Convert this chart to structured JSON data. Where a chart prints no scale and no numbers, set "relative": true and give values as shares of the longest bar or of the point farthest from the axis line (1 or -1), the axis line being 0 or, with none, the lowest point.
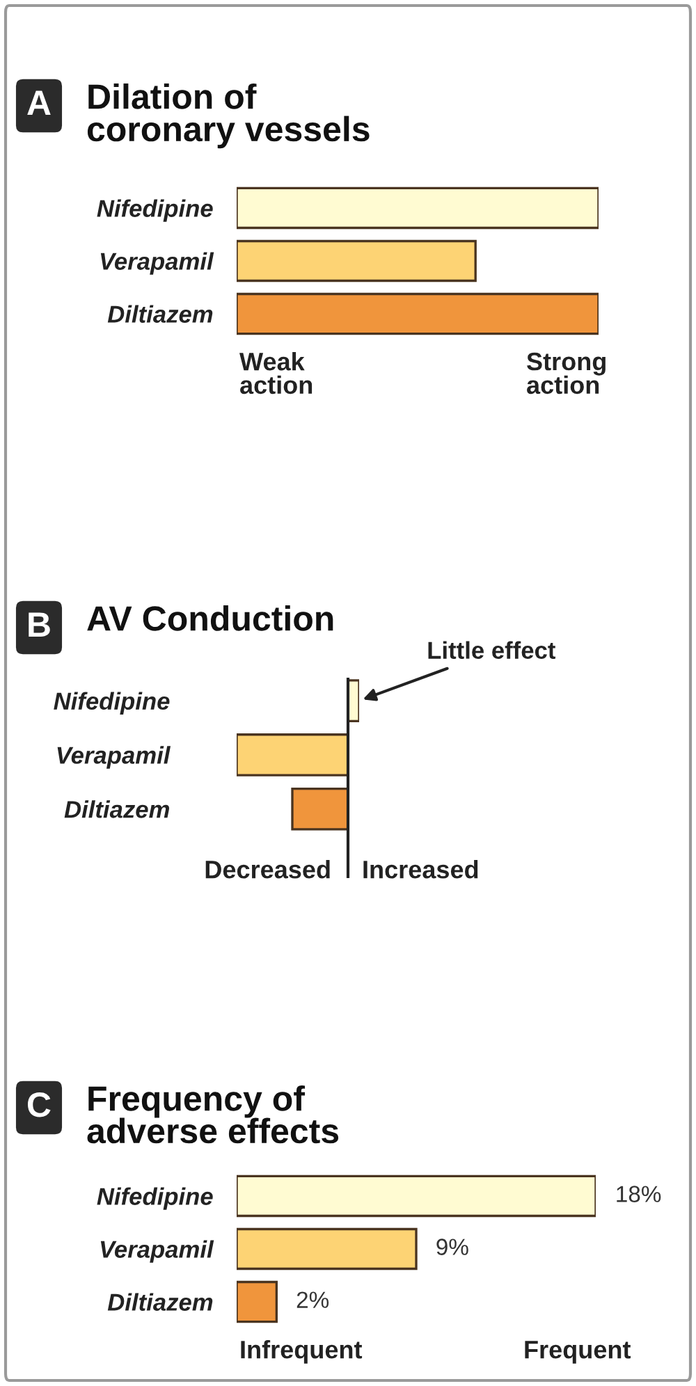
{
  "chart_data": [
    {
      "type": "bar",
      "orientation": "horizontal",
      "relative": true,
      "title": "Dilation of\ncoronary vessels",
      "categories": [
        "Nifedipine",
        "Verapamil",
        "Diltiazem"
      ],
      "values": [
        1,
        0.66,
        1
      ],
      "colors": [
        "#fffbd2",
        "#fdd374",
        "#f0953c"
      ],
      "annotations": [
        "A",
        "Weak\naction",
        "Strong\naction"
      ]
    },
    {
      "type": "bar",
      "orientation": "horizontal",
      "relative": true,
      "title": "AV Conduction",
      "categories": [
        "Nifedipine",
        "Verapamil",
        "Diltiazem"
      ],
      "values": [
        0.1,
        -1,
        -0.5
      ],
      "colors": [
        "#fffbd2",
        "#fdd374",
        "#f0953c"
      ],
      "annotations": [
        "B",
        {
          "text": "Little effect",
          "x": 0.1,
          "y": "Nifedipine"
        },
        "Decreased",
        "Increased"
      ]
    },
    {
      "type": "bar",
      "orientation": "horizontal",
      "title": "Frequency of\nadverse effects",
      "categories": [
        "Nifedipine",
        "Verapamil",
        "Diltiazem"
      ],
      "values": [
        18,
        9,
        2
      ],
      "colors": [
        "#fffbd2",
        "#fdd374",
        "#f0953c"
      ],
      "value_labels": [
        "18%",
        "9%",
        "2%"
      ],
      "annotations": [
        "C",
        "Infrequent",
        "Frequent"
      ]
    }
  ]
}
